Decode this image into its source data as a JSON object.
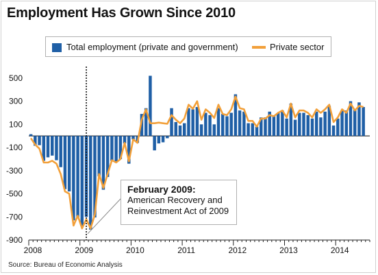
{
  "title": "Employment Has Grown Since 2010",
  "legend": {
    "total_label": "Total employment (private and government)",
    "private_label": "Private sector"
  },
  "annotation": {
    "heading": "February 2009:",
    "line1": "American Recovery and",
    "line2": "Reinvestment Act of 2009"
  },
  "source": "Source: Bureau of Economic Analysis",
  "colors": {
    "bars": "#1f5fa6",
    "line": "#f2a03a",
    "axis": "#222222",
    "grid": "#cccccc"
  },
  "chart_data": {
    "type": "bar",
    "title": "Employment Has Grown Since 2010",
    "xlabel": "",
    "ylabel": "",
    "ylim": [
      -900,
      600
    ],
    "yticks": [
      500,
      300,
      100,
      -100,
      -300,
      -500,
      -700,
      -900
    ],
    "year_labels": [
      "2008",
      "2009",
      "2010",
      "2011",
      "2012",
      "2013",
      "2014"
    ],
    "reference_event": {
      "label": "February 2009",
      "index": 13
    },
    "x": [
      "2008-01",
      "2008-02",
      "2008-03",
      "2008-04",
      "2008-05",
      "2008-06",
      "2008-07",
      "2008-08",
      "2008-09",
      "2008-10",
      "2008-11",
      "2008-12",
      "2009-01",
      "2009-02",
      "2009-03",
      "2009-04",
      "2009-05",
      "2009-06",
      "2009-07",
      "2009-08",
      "2009-09",
      "2009-10",
      "2009-11",
      "2009-12",
      "2010-01",
      "2010-02",
      "2010-03",
      "2010-04",
      "2010-05",
      "2010-06",
      "2010-07",
      "2010-08",
      "2010-09",
      "2010-10",
      "2010-11",
      "2010-12",
      "2011-01",
      "2011-02",
      "2011-03",
      "2011-04",
      "2011-05",
      "2011-06",
      "2011-07",
      "2011-08",
      "2011-09",
      "2011-10",
      "2011-11",
      "2011-12",
      "2012-01",
      "2012-02",
      "2012-03",
      "2012-04",
      "2012-05",
      "2012-06",
      "2012-07",
      "2012-08",
      "2012-09",
      "2012-10",
      "2012-11",
      "2012-12",
      "2013-01",
      "2013-02",
      "2013-03",
      "2013-04",
      "2013-05",
      "2013-06",
      "2013-07",
      "2013-08",
      "2013-09",
      "2013-10",
      "2013-11",
      "2013-12",
      "2014-01",
      "2014-02",
      "2014-03",
      "2014-04",
      "2014-05",
      "2014-06",
      "2014-07"
    ],
    "series": [
      {
        "name": "Total employment (private and government)",
        "values": [
          15,
          -85,
          -80,
          -215,
          -185,
          -170,
          -210,
          -270,
          -460,
          -480,
          -730,
          -705,
          -780,
          -700,
          -810,
          -705,
          -350,
          -465,
          -355,
          -215,
          -230,
          -200,
          -65,
          -240,
          -30,
          -60,
          190,
          240,
          520,
          -125,
          -65,
          -55,
          -20,
          240,
          120,
          90,
          110,
          240,
          230,
          250,
          100,
          200,
          180,
          100,
          240,
          190,
          170,
          200,
          360,
          220,
          210,
          110,
          110,
          80,
          160,
          160,
          210,
          170,
          200,
          220,
          150,
          280,
          140,
          200,
          200,
          180,
          150,
          210,
          160,
          210,
          260,
          90,
          150,
          220,
          220,
          300,
          230,
          290,
          250
        ]
      },
      {
        "name": "Private sector",
        "values": [
          -20,
          -75,
          -110,
          -230,
          -230,
          -215,
          -240,
          -330,
          -480,
          -500,
          -775,
          -690,
          -800,
          -720,
          -800,
          -680,
          -330,
          -450,
          -330,
          -210,
          -230,
          -200,
          -60,
          -220,
          -30,
          -60,
          140,
          230,
          110,
          110,
          115,
          110,
          105,
          180,
          140,
          110,
          150,
          270,
          235,
          300,
          140,
          230,
          200,
          155,
          270,
          190,
          180,
          230,
          340,
          240,
          230,
          130,
          130,
          80,
          150,
          150,
          180,
          170,
          200,
          220,
          160,
          280,
          160,
          220,
          220,
          200,
          160,
          230,
          200,
          230,
          270,
          120,
          160,
          230,
          200,
          280,
          220,
          260,
          250
        ]
      }
    ]
  }
}
